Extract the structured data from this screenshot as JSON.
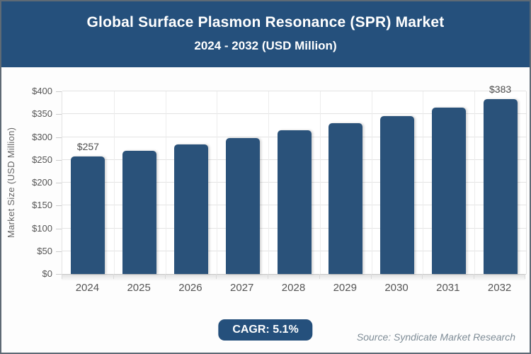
{
  "header": {
    "title_line1": "Global Surface Plasmon Resonance (SPR) Market",
    "title_line2": "2024 - 2032 (USD Million)"
  },
  "chart_data": {
    "type": "bar",
    "title": "Global Surface Plasmon Resonance (SPR) Market 2024 - 2032 (USD Million)",
    "categories": [
      "2024",
      "2025",
      "2026",
      "2027",
      "2028",
      "2029",
      "2030",
      "2031",
      "2032"
    ],
    "values": [
      257,
      270,
      284,
      298,
      314,
      330,
      346,
      364,
      383
    ],
    "point_labels": [
      "$257",
      "",
      "",
      "",
      "",
      "",
      "",
      "",
      "$383"
    ],
    "xlabel": "",
    "ylabel": "Market Size (USD Million)",
    "ylim": [
      0,
      400
    ],
    "ytick_interval": 50,
    "ytick_labels": [
      "$0",
      "$50",
      "$100",
      "$150",
      "$200",
      "$250",
      "$300",
      "$350",
      "$400"
    ],
    "grid": true,
    "legend": "none"
  },
  "footer": {
    "cagr_label": "CAGR: 5.1%",
    "source": "Source: Syndicate Market Research"
  },
  "colors": {
    "header_bg": "#25507C",
    "bar": "#2A527A",
    "badge_bg": "#25507C",
    "grid": "#E3E3E3",
    "axis_text": "#555555",
    "source_text": "#7E8C96"
  }
}
